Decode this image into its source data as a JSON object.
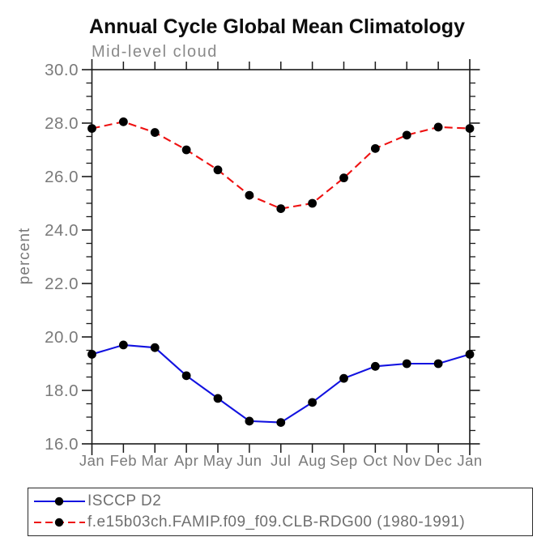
{
  "header": {
    "title": "Annual Cycle Global Mean Climatology",
    "subtitle": "Mid-level cloud"
  },
  "chart_data": {
    "type": "line",
    "title": "Annual Cycle Global Mean Climatology",
    "subtitle": "Mid-level cloud",
    "xlabel": "",
    "ylabel": "percent",
    "x_labels": [
      "Jan",
      "Feb",
      "Mar",
      "Apr",
      "May",
      "Jun",
      "Jul",
      "Aug",
      "Sep",
      "Oct",
      "Nov",
      "Dec",
      "Jan"
    ],
    "ylim": [
      16.0,
      30.0
    ],
    "y_major_step": 2.0,
    "y_minor_step": 0.5,
    "y_tick_labels": [
      "16.0",
      "18.0",
      "20.0",
      "22.0",
      "24.0",
      "26.0",
      "28.0",
      "30.0"
    ],
    "grid": false,
    "legend_position": "bottom",
    "series": [
      {
        "name": "ISCCP D2",
        "line_style": "solid",
        "color": "#1212e0",
        "marker_color": "#000000",
        "values": [
          19.35,
          19.7,
          19.6,
          18.55,
          17.7,
          16.85,
          16.8,
          17.55,
          18.45,
          18.9,
          19.0,
          19.0,
          19.35
        ]
      },
      {
        "name": "f.e15b03ch.FAMIP.f09_f09.CLB-RDG00 (1980-1991)",
        "line_style": "dashed",
        "color": "#ee1111",
        "marker_color": "#000000",
        "values": [
          27.8,
          28.05,
          27.65,
          27.0,
          26.25,
          25.3,
          24.8,
          25.0,
          25.95,
          27.05,
          27.55,
          27.85,
          27.8
        ]
      }
    ]
  },
  "colors": {
    "axis": "#1a1a1a",
    "tick_text": "#7a7a7a"
  }
}
